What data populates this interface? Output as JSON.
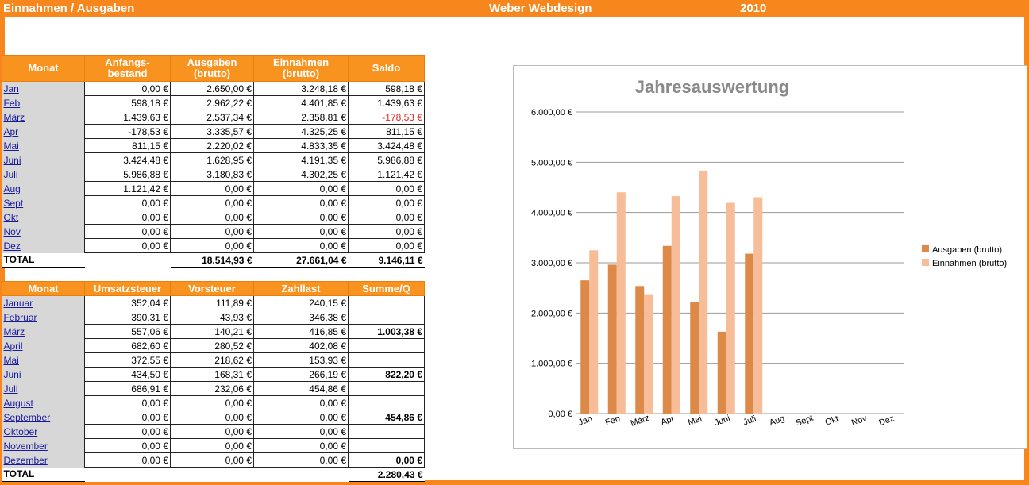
{
  "header": {
    "title": "Einnahmen / Ausgaben",
    "company": "Weber Webdesign",
    "year": "2010"
  },
  "table1": {
    "headers": [
      "Monat",
      "Anfangs-\nbestand",
      "Ausgaben\n(brutto)",
      "Einnahmen\n(brutto)",
      "Saldo"
    ],
    "rows": [
      {
        "month": "Jan",
        "a": "0,00 €",
        "b": "2.650,00 €",
        "c": "3.248,18 €",
        "d": "598,18 €"
      },
      {
        "month": "Feb",
        "a": "598,18 €",
        "b": "2.962,22 €",
        "c": "4.401,85 €",
        "d": "1.439,63 €"
      },
      {
        "month": "März",
        "a": "1.439,63 €",
        "b": "2.537,34 €",
        "c": "2.358,81 €",
        "d": "-178,53 €"
      },
      {
        "month": "Apr",
        "a": "-178,53 €",
        "b": "3.335,57 €",
        "c": "4.325,25 €",
        "d": "811,15 €"
      },
      {
        "month": "Mai",
        "a": "811,15 €",
        "b": "2.220,02 €",
        "c": "4.833,35 €",
        "d": "3.424,48 €"
      },
      {
        "month": "Juni",
        "a": "3.424,48 €",
        "b": "1.628,95 €",
        "c": "4.191,35 €",
        "d": "5.986,88 €"
      },
      {
        "month": "Juli",
        "a": "5.986,88 €",
        "b": "3.180,83 €",
        "c": "4.302,25 €",
        "d": "1.121,42 €"
      },
      {
        "month": "Aug",
        "a": "1.121,42 €",
        "b": "0,00 €",
        "c": "0,00 €",
        "d": "0,00 €"
      },
      {
        "month": "Sept",
        "a": "0,00 €",
        "b": "0,00 €",
        "c": "0,00 €",
        "d": "0,00 €"
      },
      {
        "month": "Okt",
        "a": "0,00 €",
        "b": "0,00 €",
        "c": "0,00 €",
        "d": "0,00 €"
      },
      {
        "month": "Nov",
        "a": "0,00 €",
        "b": "0,00 €",
        "c": "0,00 €",
        "d": "0,00 €"
      },
      {
        "month": "Dez",
        "a": "0,00 €",
        "b": "0,00 €",
        "c": "0,00 €",
        "d": "0,00 €"
      }
    ],
    "total_label": "TOTAL",
    "total_b": "18.514,93 €",
    "total_c": "27.661,04 €",
    "total_d": "9.146,11 €"
  },
  "table2": {
    "headers": [
      "Monat",
      "Umsatzsteuer",
      "Vorsteuer",
      "Zahllast",
      "Summe/Q"
    ],
    "rows": [
      {
        "month": "Januar",
        "a": "352,04 €",
        "b": "111,89 €",
        "c": "240,15 €",
        "d": ""
      },
      {
        "month": "Februar",
        "a": "390,31 €",
        "b": "43,93 €",
        "c": "346,38 €",
        "d": ""
      },
      {
        "month": "März",
        "a": "557,06 €",
        "b": "140,21 €",
        "c": "416,85 €",
        "d": "1.003,38 €"
      },
      {
        "month": "April",
        "a": "682,60 €",
        "b": "280,52 €",
        "c": "402,08 €",
        "d": ""
      },
      {
        "month": "Mai",
        "a": "372,55 €",
        "b": "218,62 €",
        "c": "153,93 €",
        "d": ""
      },
      {
        "month": "Juni",
        "a": "434,50 €",
        "b": "168,31 €",
        "c": "266,19 €",
        "d": "822,20 €"
      },
      {
        "month": "Juli",
        "a": "686,91 €",
        "b": "232,06 €",
        "c": "454,86 €",
        "d": ""
      },
      {
        "month": "August",
        "a": "0,00 €",
        "b": "0,00 €",
        "c": "0,00 €",
        "d": ""
      },
      {
        "month": "September",
        "a": "0,00 €",
        "b": "0,00 €",
        "c": "0,00 €",
        "d": "454,86 €"
      },
      {
        "month": "Oktober",
        "a": "0,00 €",
        "b": "0,00 €",
        "c": "0,00 €",
        "d": ""
      },
      {
        "month": "November",
        "a": "0,00 €",
        "b": "0,00 €",
        "c": "0,00 €",
        "d": ""
      },
      {
        "month": "Dezember",
        "a": "0,00 €",
        "b": "0,00 €",
        "c": "0,00 €",
        "d": "0,00 €"
      }
    ],
    "total_label": "TOTAL",
    "total_d": "2.280,43 €"
  },
  "colors": {
    "accent": "#f7861c",
    "ausgaben": "#dd8a48",
    "einnahmen": "#f7bc98"
  },
  "chart_data": {
    "type": "bar",
    "title": "Jahresauswertung",
    "categories": [
      "Jan",
      "Feb",
      "März",
      "Apr",
      "Mai",
      "Juni",
      "Juli",
      "Aug",
      "Sept",
      "Okt",
      "Nov",
      "Dez"
    ],
    "series": [
      {
        "name": "Ausgaben  (brutto)",
        "values": [
          2650.0,
          2962.22,
          2537.34,
          3335.57,
          2220.02,
          1628.95,
          3180.83,
          0,
          0,
          0,
          0,
          0
        ]
      },
      {
        "name": "Einnahmen  (brutto)",
        "values": [
          3248.18,
          4401.85,
          2358.81,
          4325.25,
          4833.35,
          4191.35,
          4302.25,
          0,
          0,
          0,
          0,
          0
        ]
      }
    ],
    "yticks": [
      "0,00 €",
      "1.000,00 €",
      "2.000,00 €",
      "3.000,00 €",
      "4.000,00 €",
      "5.000,00 €",
      "6.000,00 €"
    ],
    "ylim": [
      0,
      6000
    ],
    "grid": true,
    "legend": "right"
  }
}
